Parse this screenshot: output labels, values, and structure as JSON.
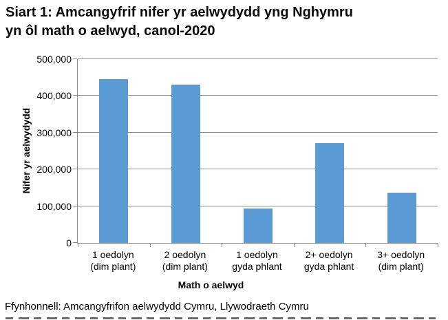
{
  "chart_data": {
    "type": "bar",
    "title": "Siart 1: Amcangyfrif nifer yr aelwydydd yng Nghymru yn ôl math o aelwyd, canol-2020",
    "title_lines": [
      "Siart 1: Amcangyfrif nifer yr aelwydydd yng Nghymru",
      "yn ôl math o aelwyd, canol-2020"
    ],
    "categories": [
      "1 oedolyn (dim plant)",
      "2 oedolyn (dim plant)",
      "1 oedolyn gyda phlant",
      "2+ oedolyn gyda phlant",
      "3+ oedolyn (dim plant)"
    ],
    "category_lines": [
      [
        "1 oedolyn",
        "(dim plant)"
      ],
      [
        "2 oedolyn",
        "(dim plant)"
      ],
      [
        "1 oedolyn",
        "gyda phlant"
      ],
      [
        "2+ oedolyn",
        "gyda phlant"
      ],
      [
        "3+ oedolyn",
        "(dim plant)"
      ]
    ],
    "values": [
      445000,
      430000,
      94000,
      271000,
      136000
    ],
    "xlabel": "Math o aelwyd",
    "ylabel": "Nifer yr aelwydydd",
    "ylim": [
      0,
      500000
    ],
    "yticks": [
      0,
      100000,
      200000,
      300000,
      400000,
      500000
    ],
    "ytick_labels": [
      "0",
      "100,000",
      "200,000",
      "300,000",
      "400,000",
      "500,000"
    ],
    "grid": true,
    "legend": false,
    "bar_color": "#5B9BD5",
    "axis_color": "#8C8C8C"
  },
  "footer": {
    "source": "Ffynhonnell: Amcangyfrifon aelwydydd Cymru, Llywodraeth Cymru"
  }
}
